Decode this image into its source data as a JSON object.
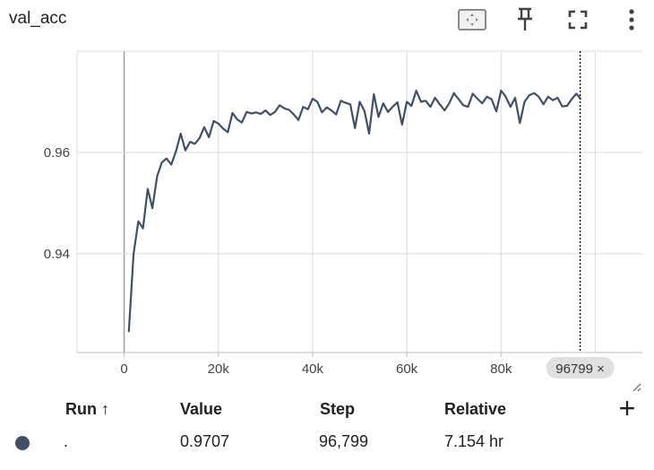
{
  "header": {
    "title": "val_acc"
  },
  "toolbar": {
    "icons": [
      "fit-domain-icon",
      "pin-icon",
      "fullscreen-icon",
      "more-vert-icon"
    ]
  },
  "colors": {
    "series": "#425066",
    "grid": "#dcdcdc",
    "cursor_chip_bg": "#e0e0e0"
  },
  "chart_data": {
    "type": "line",
    "title": "val_acc",
    "xlabel": "",
    "ylabel": "",
    "xlim": [
      -10000,
      110000
    ],
    "ylim": [
      0.9205,
      0.98
    ],
    "x_ticks": [
      0,
      20000,
      40000,
      60000,
      80000
    ],
    "x_tick_labels": [
      "0",
      "20k",
      "40k",
      "60k",
      "80k"
    ],
    "y_ticks": [
      0.94,
      0.96
    ],
    "y_tick_labels": [
      "0.94",
      "0.96"
    ],
    "grid": true,
    "cursor": {
      "x": 96799,
      "label": "96799 ×"
    },
    "series": [
      {
        "color": "#425066",
        "x": [
          1000,
          2000,
          3000,
          4000,
          5000,
          6000,
          7000,
          8000,
          9000,
          10000,
          11000,
          12000,
          13000,
          14000,
          15000,
          16000,
          17000,
          18000,
          19000,
          20000,
          21000,
          22000,
          23000,
          24000,
          25000,
          26000,
          27000,
          28000,
          29000,
          30000,
          31000,
          32000,
          33000,
          34000,
          35000,
          36000,
          37000,
          38000,
          39000,
          40000,
          41000,
          42000,
          43000,
          44000,
          45000,
          46000,
          47000,
          48000,
          49000,
          50000,
          51000,
          52000,
          53000,
          54000,
          55000,
          56000,
          57000,
          58000,
          59000,
          60000,
          61000,
          62000,
          63000,
          64000,
          65000,
          66000,
          67000,
          68000,
          69000,
          70000,
          71000,
          72000,
          73000,
          74000,
          75000,
          76000,
          77000,
          78000,
          79000,
          80000,
          81000,
          82000,
          83000,
          84000,
          85000,
          86000,
          87000,
          88000,
          89000,
          90000,
          91000,
          92000,
          93000,
          94000,
          95000,
          96000,
          96799
        ],
        "y": [
          0.9247,
          0.94,
          0.9464,
          0.945,
          0.9528,
          0.949,
          0.9553,
          0.958,
          0.9588,
          0.9576,
          0.9602,
          0.9637,
          0.9604,
          0.9621,
          0.9617,
          0.9628,
          0.965,
          0.963,
          0.9662,
          0.9657,
          0.9647,
          0.964,
          0.9678,
          0.9665,
          0.9659,
          0.968,
          0.9677,
          0.9679,
          0.9676,
          0.9683,
          0.9674,
          0.968,
          0.9693,
          0.9687,
          0.9684,
          0.9675,
          0.9664,
          0.969,
          0.9685,
          0.9706,
          0.97,
          0.9679,
          0.9689,
          0.9683,
          0.9675,
          0.9702,
          0.9698,
          0.9695,
          0.9648,
          0.97,
          0.9682,
          0.9637,
          0.9715,
          0.967,
          0.9697,
          0.968,
          0.969,
          0.9699,
          0.9655,
          0.97,
          0.9692,
          0.9722,
          0.97,
          0.9702,
          0.969,
          0.9708,
          0.9695,
          0.9683,
          0.9697,
          0.9717,
          0.9705,
          0.9693,
          0.969,
          0.9716,
          0.9706,
          0.9697,
          0.971,
          0.9705,
          0.9681,
          0.9722,
          0.971,
          0.969,
          0.9708,
          0.9658,
          0.97,
          0.9713,
          0.9717,
          0.971,
          0.9695,
          0.971,
          0.9703,
          0.9708,
          0.9691,
          0.9692,
          0.9705,
          0.9716,
          0.9707
        ]
      }
    ]
  },
  "table": {
    "headers": {
      "run": "Run ↑",
      "value": "Value",
      "step": "Step",
      "relative": "Relative"
    },
    "add_label": "+",
    "rows": [
      {
        "color": "#425066",
        "run": ".",
        "value": "0.9707",
        "step": "96,799",
        "relative": "7.154 hr"
      }
    ]
  }
}
